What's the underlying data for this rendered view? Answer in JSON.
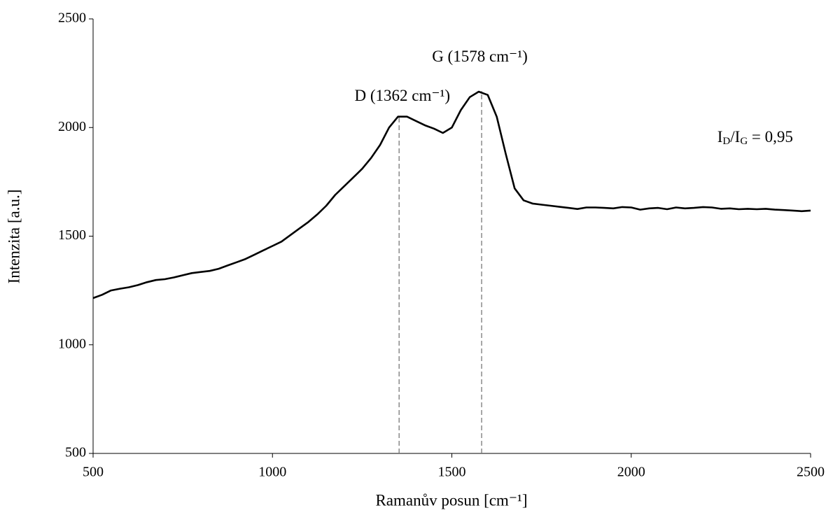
{
  "chart_data": {
    "type": "line",
    "x_label": "Ramanův posun [cm⁻¹]",
    "y_label": "Intenzita [a.u.]",
    "xlim": [
      500,
      2500
    ],
    "xticks": [
      500,
      1000,
      1500,
      2000,
      2500
    ],
    "ylim": [
      500,
      2500
    ],
    "yticks": [
      500,
      1000,
      1500,
      2000,
      2500
    ],
    "grid": false,
    "series": [
      {
        "color": "#000000",
        "x": [
          500,
          525,
          550,
          575,
          600,
          625,
          650,
          675,
          700,
          725,
          750,
          775,
          800,
          825,
          850,
          875,
          900,
          925,
          950,
          975,
          1000,
          1025,
          1050,
          1075,
          1100,
          1125,
          1150,
          1175,
          1200,
          1225,
          1250,
          1275,
          1300,
          1325,
          1350,
          1375,
          1400,
          1425,
          1450,
          1475,
          1500,
          1525,
          1550,
          1575,
          1600,
          1625,
          1650,
          1675,
          1700,
          1725,
          1750,
          1775,
          1800,
          1825,
          1850,
          1875,
          1900,
          1925,
          1950,
          1975,
          2000,
          2025,
          2050,
          2075,
          2100,
          2125,
          2150,
          2175,
          2200,
          2225,
          2250,
          2275,
          2300,
          2325,
          2350,
          2375,
          2400,
          2425,
          2450,
          2475,
          2500
        ],
        "values": [
          1215,
          1230,
          1250,
          1258,
          1265,
          1275,
          1288,
          1298,
          1302,
          1310,
          1320,
          1330,
          1335,
          1340,
          1350,
          1365,
          1380,
          1395,
          1415,
          1435,
          1455,
          1475,
          1505,
          1535,
          1565,
          1600,
          1640,
          1690,
          1730,
          1770,
          1810,
          1860,
          1920,
          2000,
          2050,
          2050,
          2030,
          2010,
          1995,
          1975,
          2000,
          2080,
          2140,
          2165,
          2150,
          2050,
          1880,
          1720,
          1665,
          1650,
          1645,
          1640,
          1635,
          1630,
          1625,
          1632,
          1632,
          1630,
          1628,
          1634,
          1632,
          1622,
          1628,
          1630,
          1624,
          1632,
          1628,
          1630,
          1634,
          1632,
          1626,
          1628,
          1624,
          1626,
          1624,
          1626,
          1622,
          1620,
          1618,
          1615,
          1618
        ]
      }
    ],
    "markers": [
      {
        "x": 1353,
        "y": 2052
      },
      {
        "x": 1583,
        "y": 2168
      }
    ],
    "annotations": [
      {
        "text": "D (1362 cm⁻¹)",
        "x": 1362,
        "y": 2140
      },
      {
        "text": "G (1578 cm⁻¹)",
        "x": 1578,
        "y": 2320
      }
    ],
    "ratio_label": {
      "parts": [
        "I",
        "D",
        "/I",
        "G",
        " = 0,95"
      ],
      "x": 2240,
      "y": 1950
    }
  }
}
